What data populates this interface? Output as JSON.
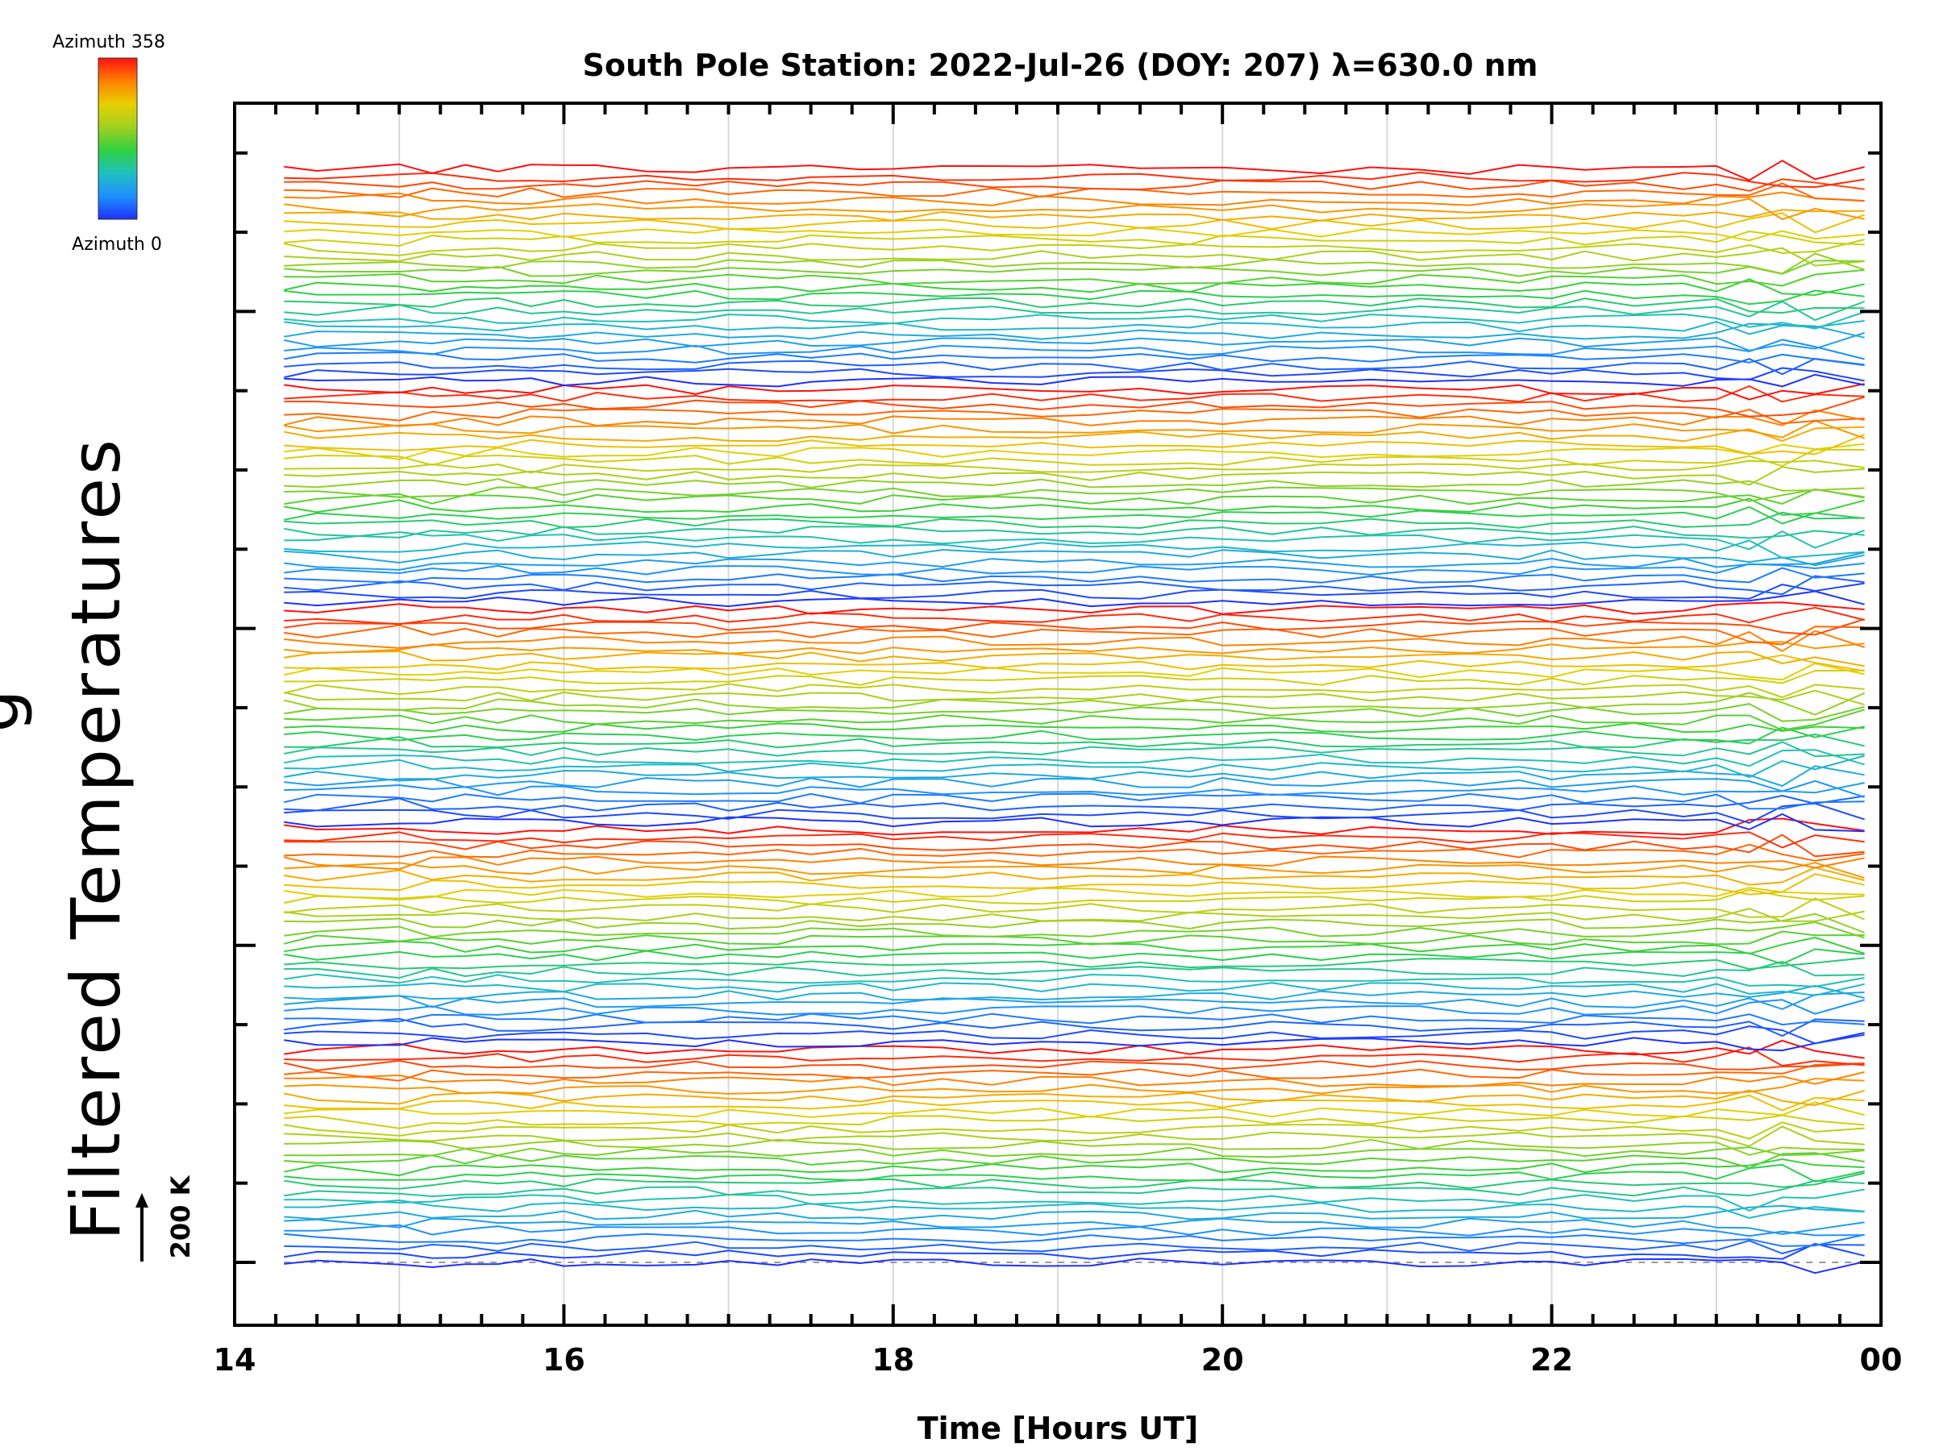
{
  "chart_data": {
    "type": "line",
    "title": "South Pole Station: 2022-Jul-26 (DOY: 207) λ=630.0 nm",
    "xlabel": "Time [Hours UT]",
    "ylabel": "Filtered Temperatures",
    "ylabel_partial": "g",
    "x_ticks": [
      "14",
      "16",
      "18",
      "20",
      "22",
      "00"
    ],
    "xlim": [
      14,
      24
    ],
    "scale_bar_label": "200 K",
    "scale_bar_value": 200,
    "colorbar": {
      "top_label": "Azimuth 358",
      "bottom_label": "Azimuth 0",
      "min": 0,
      "max": 358,
      "colors": [
        "#1f30ff",
        "#1e90ff",
        "#20c0c0",
        "#30d040",
        "#a0d020",
        "#e8d000",
        "#ff8000",
        "#ff1010"
      ]
    },
    "series_description": "Stacked time series of filtered temperatures, one line per azimuth, colored by azimuth; stack groups repeat blue→cyan→green→yellow→orange→red from bottom to top.",
    "series_count": 140,
    "x_start": 14.3,
    "x_end": 23.9,
    "sample_times": [
      14.3,
      14.5,
      15.0,
      15.2,
      15.4,
      15.6,
      15.8,
      16.0,
      16.2,
      16.5,
      16.8,
      17.0,
      17.3,
      17.5,
      17.8,
      18.0,
      18.3,
      18.6,
      18.9,
      19.2,
      19.5,
      19.8,
      20.0,
      20.3,
      20.6,
      20.9,
      21.2,
      21.5,
      21.8,
      22.0,
      22.2,
      22.5,
      22.8,
      23.0,
      23.2,
      23.4,
      23.6,
      23.9
    ],
    "dashed_baseline": true
  }
}
